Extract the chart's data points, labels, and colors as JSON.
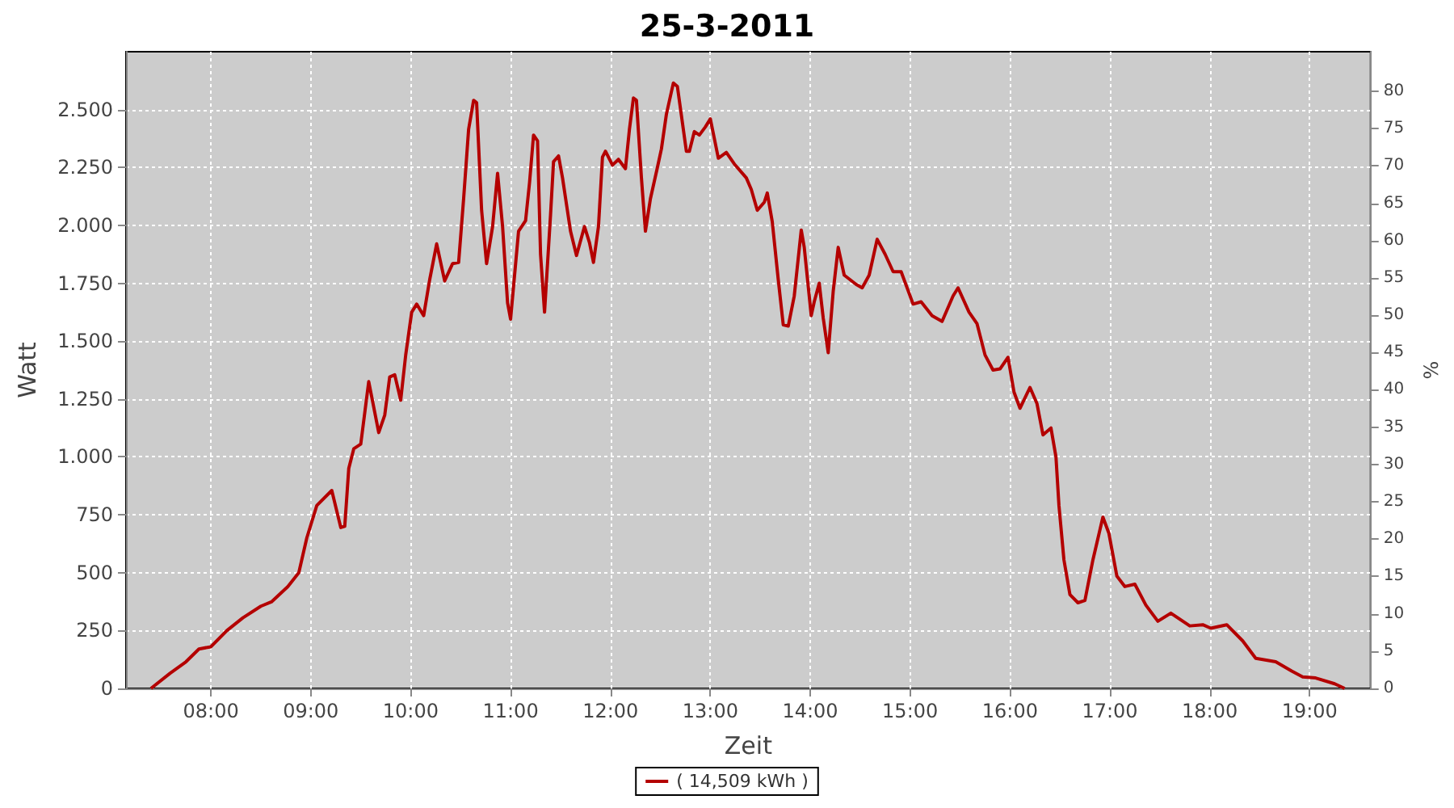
{
  "chart_data": {
    "type": "line",
    "title": "25-3-2011",
    "xlabel": "Zeit",
    "ylabel": "Watt",
    "y2label": "%",
    "xlim": [
      7.15,
      19.61
    ],
    "xticks": [
      {
        "value": 8,
        "label": "08:00"
      },
      {
        "value": 9,
        "label": "09:00"
      },
      {
        "value": 10,
        "label": "10:00"
      },
      {
        "value": 11,
        "label": "11:00"
      },
      {
        "value": 12,
        "label": "12:00"
      },
      {
        "value": 13,
        "label": "13:00"
      },
      {
        "value": 14,
        "label": "14:00"
      },
      {
        "value": 15,
        "label": "15:00"
      },
      {
        "value": 16,
        "label": "16:00"
      },
      {
        "value": 17,
        "label": "17:00"
      },
      {
        "value": 18,
        "label": "18:00"
      },
      {
        "value": 19,
        "label": "19:00"
      }
    ],
    "ylim": [
      0,
      2750
    ],
    "yticks": [
      0,
      250,
      500,
      750,
      {
        "value": 1000,
        "label": "1.000"
      },
      {
        "value": 1250,
        "label": "1.250"
      },
      {
        "value": 1500,
        "label": "1.500"
      },
      {
        "value": 1750,
        "label": "1.750"
      },
      {
        "value": 2000,
        "label": "2.000"
      },
      {
        "value": 2250,
        "label": "2.250"
      },
      {
        "value": 2500,
        "label": "2.500"
      }
    ],
    "y2lim": [
      0,
      85.3
    ],
    "y2ticks": [
      0,
      5,
      10,
      15,
      20,
      25,
      30,
      35,
      40,
      45,
      50,
      55,
      60,
      65,
      70,
      75,
      80
    ],
    "grid": true,
    "legend": "bottom",
    "marker": "none",
    "series": [
      {
        "name": "( 14,509 kWh )",
        "color": "#b40000",
        "x": [
          7.4,
          7.59,
          7.75,
          7.88,
          8.0,
          8.16,
          8.32,
          8.5,
          8.61,
          8.77,
          8.88,
          8.96,
          9.06,
          9.21,
          9.3,
          9.34,
          9.38,
          9.43,
          9.5,
          9.58,
          9.68,
          9.74,
          9.79,
          9.84,
          9.9,
          9.95,
          10.01,
          10.06,
          10.13,
          10.19,
          10.26,
          10.34,
          10.42,
          10.48,
          10.53,
          10.58,
          10.63,
          10.66,
          10.71,
          10.76,
          10.82,
          10.87,
          10.92,
          10.97,
          11.0,
          11.08,
          11.15,
          11.19,
          11.23,
          11.27,
          11.3,
          11.34,
          11.4,
          11.43,
          11.48,
          11.52,
          11.6,
          11.66,
          11.74,
          11.79,
          11.83,
          11.88,
          11.92,
          11.95,
          12.02,
          12.08,
          12.15,
          12.19,
          12.23,
          12.26,
          12.31,
          12.35,
          12.4,
          12.47,
          12.51,
          12.56,
          12.63,
          12.67,
          12.76,
          12.79,
          12.84,
          12.89,
          12.95,
          13.0,
          13.08,
          13.16,
          13.24,
          13.36,
          13.41,
          13.47,
          13.54,
          13.57,
          13.62,
          13.68,
          13.73,
          13.78,
          13.84,
          13.91,
          13.94,
          14.01,
          14.04,
          14.09,
          14.13,
          14.18,
          14.23,
          14.28,
          14.34,
          14.46,
          14.52,
          14.59,
          14.67,
          14.75,
          14.83,
          14.91,
          15.03,
          15.11,
          15.22,
          15.32,
          15.43,
          15.48,
          15.59,
          15.67,
          15.75,
          15.83,
          15.9,
          15.98,
          16.04,
          16.1,
          16.2,
          16.27,
          16.33,
          16.41,
          16.46,
          16.49,
          16.54,
          16.6,
          16.68,
          16.75,
          16.83,
          16.93,
          16.99,
          17.07,
          17.15,
          17.25,
          17.36,
          17.48,
          17.61,
          17.8,
          17.93,
          18.01,
          18.17,
          18.33,
          18.46,
          18.66,
          18.82,
          18.93,
          19.06,
          19.25,
          19.35
        ],
        "values": [
          0,
          65,
          115,
          170,
          180,
          250,
          305,
          355,
          375,
          440,
          500,
          650,
          790,
          855,
          695,
          700,
          950,
          1035,
          1055,
          1325,
          1105,
          1180,
          1345,
          1355,
          1245,
          1440,
          1625,
          1660,
          1610,
          1765,
          1920,
          1760,
          1835,
          1840,
          2115,
          2415,
          2540,
          2530,
          2065,
          1835,
          1995,
          2225,
          1995,
          1665,
          1595,
          1975,
          2020,
          2185,
          2390,
          2365,
          1875,
          1625,
          2045,
          2275,
          2300,
          2205,
          1975,
          1870,
          1995,
          1925,
          1840,
          1995,
          2295,
          2320,
          2260,
          2285,
          2245,
          2415,
          2550,
          2540,
          2205,
          1975,
          2115,
          2250,
          2330,
          2480,
          2615,
          2600,
          2320,
          2320,
          2405,
          2390,
          2425,
          2460,
          2290,
          2315,
          2265,
          2205,
          2155,
          2065,
          2100,
          2140,
          2015,
          1765,
          1570,
          1565,
          1695,
          1980,
          1905,
          1610,
          1670,
          1750,
          1600,
          1450,
          1715,
          1905,
          1785,
          1745,
          1730,
          1785,
          1940,
          1875,
          1800,
          1800,
          1660,
          1670,
          1610,
          1585,
          1695,
          1730,
          1625,
          1575,
          1440,
          1375,
          1380,
          1430,
          1280,
          1210,
          1300,
          1230,
          1095,
          1125,
          1000,
          790,
          555,
          405,
          370,
          380,
          555,
          740,
          670,
          485,
          440,
          450,
          360,
          290,
          325,
          270,
          275,
          260,
          275,
          205,
          130,
          115,
          75,
          50,
          45,
          20,
          0
        ]
      }
    ]
  }
}
